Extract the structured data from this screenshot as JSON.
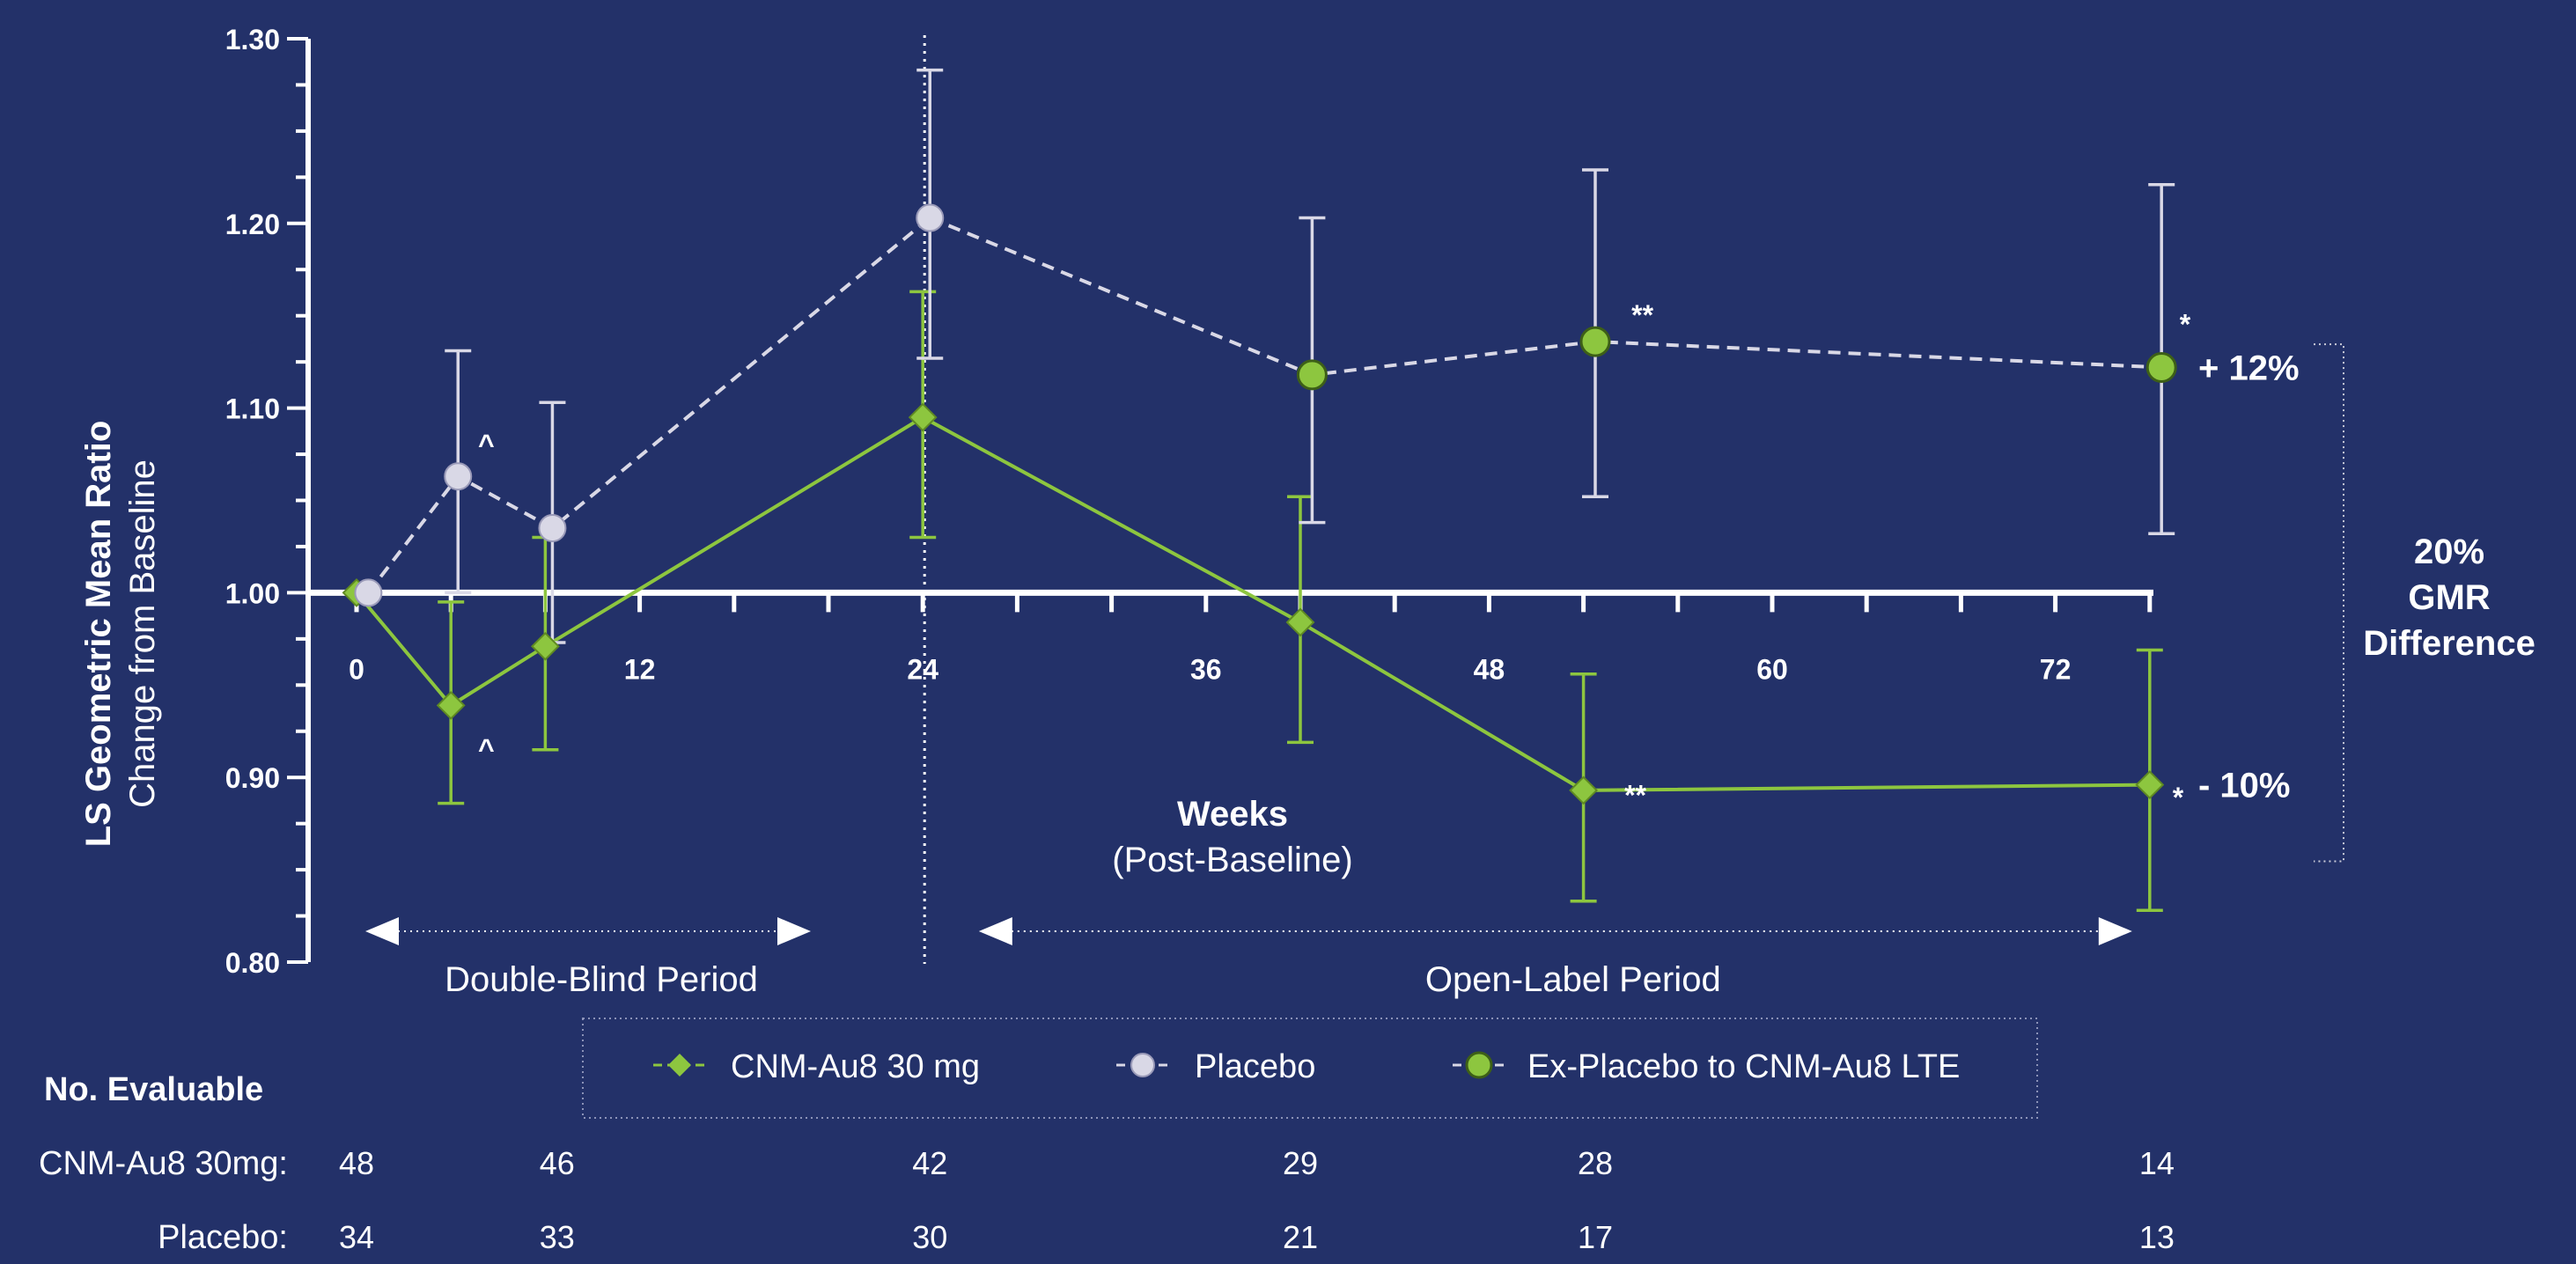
{
  "colors": {
    "background": "#233169",
    "axis": "#ffffff",
    "drug": "#8dc63f",
    "placebo": "#d9d8e6",
    "placebo_outline": "#ffffff",
    "lte": "#8dc63f",
    "text": "#ffffff",
    "legend_border": "#8c93b8"
  },
  "chart_data": {
    "type": "line",
    "title": "",
    "ylabel": "LS Geometric Mean Ratio",
    "ylabel_sub": "Change from Baseline",
    "xlabel": "Weeks",
    "xlabel_sub": "(Post-Baseline)",
    "ylim": [
      0.8,
      1.3
    ],
    "xlim": [
      0,
      76
    ],
    "yticks": [
      0.8,
      0.9,
      1.0,
      1.1,
      1.2,
      1.3
    ],
    "ytick_labels": [
      "0.80",
      "0.90",
      "1.00",
      "1.10",
      "1.20",
      "1.30"
    ],
    "xticks": [
      0,
      12,
      24,
      36,
      48,
      60,
      72
    ],
    "xtick_labels": [
      "0",
      "12",
      "24",
      "36",
      "48",
      "60",
      "72"
    ],
    "reference_line_y": 1.0,
    "vertical_divider_x": 24,
    "series": [
      {
        "key": "drug",
        "name": "CNM-Au8  30 mg",
        "marker": "diamond",
        "line": "solid",
        "points": [
          {
            "x": 0,
            "y": 1.0,
            "lo": 1.0,
            "hi": 1.0
          },
          {
            "x": 4,
            "y": 0.939,
            "lo": 0.886,
            "hi": 0.995
          },
          {
            "x": 8,
            "y": 0.971,
            "lo": 0.915,
            "hi": 1.03
          },
          {
            "x": 24,
            "y": 1.095,
            "lo": 1.03,
            "hi": 1.163
          },
          {
            "x": 40,
            "y": 0.984,
            "lo": 0.919,
            "hi": 1.052
          },
          {
            "x": 52,
            "y": 0.893,
            "lo": 0.833,
            "hi": 0.956
          },
          {
            "x": 76,
            "y": 0.896,
            "lo": 0.828,
            "hi": 0.969
          }
        ]
      },
      {
        "key": "placebo",
        "name": "Placebo",
        "marker": "circle",
        "line": "dashed",
        "points": [
          {
            "x": 0.5,
            "y": 1.0,
            "lo": 1.0,
            "hi": 1.0
          },
          {
            "x": 4.3,
            "y": 1.063,
            "lo": 1.0,
            "hi": 1.131
          },
          {
            "x": 8.3,
            "y": 1.035,
            "lo": 0.973,
            "hi": 1.103
          },
          {
            "x": 24.3,
            "y": 1.203,
            "lo": 1.127,
            "hi": 1.283
          }
        ]
      },
      {
        "key": "lte",
        "name": "Ex-Placebo to CNM-Au8 LTE",
        "marker": "circle",
        "line": "dashed",
        "points": [
          {
            "x": 24.3,
            "y": 1.203
          },
          {
            "x": 40.5,
            "y": 1.118,
            "lo": 1.038,
            "hi": 1.203
          },
          {
            "x": 52.5,
            "y": 1.136,
            "lo": 1.052,
            "hi": 1.229
          },
          {
            "x": 76.5,
            "y": 1.122,
            "lo": 1.032,
            "hi": 1.221
          }
        ]
      }
    ],
    "annotations": [
      {
        "text": "^",
        "x": 5.5,
        "y": 1.075
      },
      {
        "text": "^",
        "x": 5.5,
        "y": 0.91
      },
      {
        "text": "**",
        "x": 54.5,
        "y": 1.145
      },
      {
        "text": "**",
        "x": 54.2,
        "y": 0.885
      },
      {
        "text": "*",
        "x": 77.5,
        "y": 1.14
      },
      {
        "text": "*",
        "x": 77.2,
        "y": 0.884
      }
    ],
    "end_labels": [
      {
        "text": "+ 12%",
        "y": 1.122
      },
      {
        "text": "- 10%",
        "y": 0.896
      }
    ],
    "bracket_label": [
      "20%",
      "GMR",
      "Difference"
    ],
    "periods": [
      {
        "label": "Double-Blind Period",
        "x_start": 0,
        "x_end": 20
      },
      {
        "label": "Open-Label Period",
        "x_start": 26,
        "x_end": 76
      }
    ],
    "evaluable": {
      "title": "No. Evaluable",
      "rows": [
        {
          "label": "CNM-Au8 30mg:",
          "counts": [
            {
              "x": 0,
              "n": "48"
            },
            {
              "x": 8.5,
              "n": "46"
            },
            {
              "x": 24.3,
              "n": "42"
            },
            {
              "x": 40,
              "n": "29"
            },
            {
              "x": 52.5,
              "n": "28"
            },
            {
              "x": 76.3,
              "n": "14"
            }
          ]
        },
        {
          "label": "Placebo:",
          "counts": [
            {
              "x": 0,
              "n": "34"
            },
            {
              "x": 8.5,
              "n": "33"
            },
            {
              "x": 24.3,
              "n": "30"
            },
            {
              "x": 40,
              "n": "21"
            },
            {
              "x": 52.5,
              "n": "17"
            },
            {
              "x": 76.3,
              "n": "13"
            }
          ]
        }
      ]
    }
  }
}
